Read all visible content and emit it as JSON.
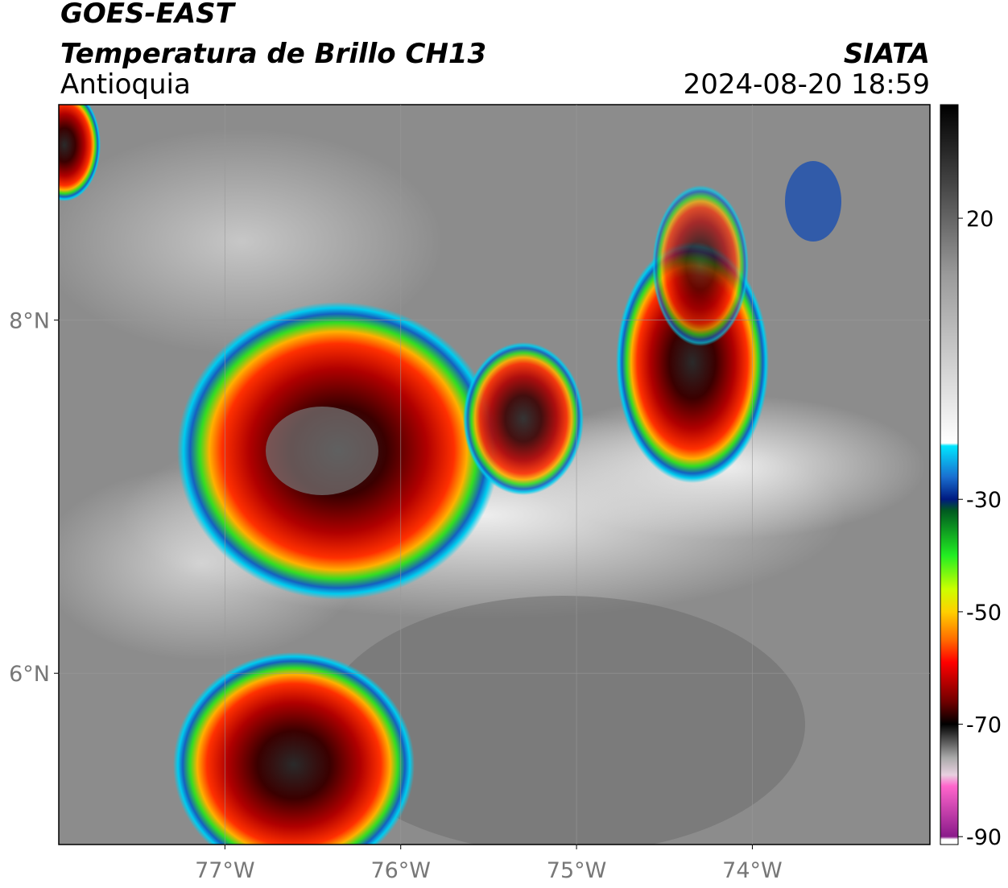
{
  "header": {
    "title": "GOES-EAST",
    "subtitle": "Temperatura de Brillo CH13",
    "region": "Antioquia",
    "source": "SIATA",
    "datetime": "2024-08-20 18:59"
  },
  "map": {
    "xlim": [
      -77.945,
      -72.99
    ],
    "ylim": [
      5.03,
      9.22
    ],
    "xticks": [
      {
        "value": -77,
        "label": "77°W"
      },
      {
        "value": -76,
        "label": "76°W"
      },
      {
        "value": -75,
        "label": "75°W"
      },
      {
        "value": -74,
        "label": "74°W"
      }
    ],
    "yticks": [
      {
        "value": 8,
        "label": "8°N"
      },
      {
        "value": 6,
        "label": "6°N"
      }
    ],
    "grid": true
  },
  "colorbar": {
    "lim": [
      40.2,
      -91.4
    ],
    "ticks": [
      20,
      -30,
      -50,
      -70,
      -90
    ],
    "stops": [
      {
        "value": 40,
        "color": "#000000"
      },
      {
        "value": 25,
        "color": "#4a4a4a"
      },
      {
        "value": 10,
        "color": "#9a9a9a"
      },
      {
        "value": -20,
        "color": "#ffffff"
      },
      {
        "value": -20.5,
        "color": "#00e5ff"
      },
      {
        "value": -26,
        "color": "#1a6fd0"
      },
      {
        "value": -30,
        "color": "#001a80"
      },
      {
        "value": -32,
        "color": "#005a20"
      },
      {
        "value": -40,
        "color": "#22ee22"
      },
      {
        "value": -46,
        "color": "#ccff00"
      },
      {
        "value": -50,
        "color": "#ffd000"
      },
      {
        "value": -55,
        "color": "#ff6a00"
      },
      {
        "value": -59,
        "color": "#ff0000"
      },
      {
        "value": -66,
        "color": "#700000"
      },
      {
        "value": -70,
        "color": "#000000"
      },
      {
        "value": -76,
        "color": "#aaaaaa"
      },
      {
        "value": -79,
        "color": "#e8d0e0"
      },
      {
        "value": -81,
        "color": "#ff66cc"
      },
      {
        "value": -90,
        "color": "#8a1a8a"
      },
      {
        "value": -90.5,
        "color": "#ffffff"
      }
    ]
  }
}
